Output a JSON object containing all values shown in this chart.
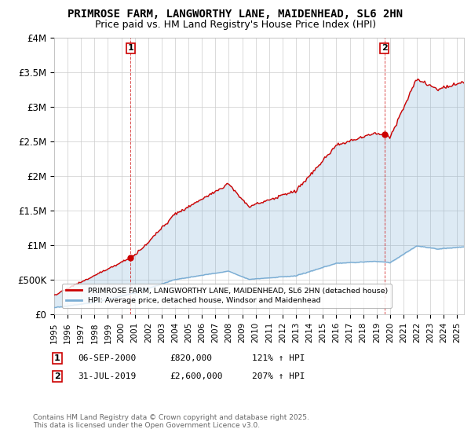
{
  "title": "PRIMROSE FARM, LANGWORTHY LANE, MAIDENHEAD, SL6 2HN",
  "subtitle": "Price paid vs. HM Land Registry's House Price Index (HPI)",
  "ylim": [
    0,
    4000000
  ],
  "yticks": [
    0,
    500000,
    1000000,
    1500000,
    2000000,
    2500000,
    3000000,
    3500000,
    4000000
  ],
  "ytick_labels": [
    "£0",
    "£500K",
    "£1M",
    "£1.5M",
    "£2M",
    "£2.5M",
    "£3M",
    "£3.5M",
    "£4M"
  ],
  "xlim_start": 1995.0,
  "xlim_end": 2025.5,
  "marker1_x": 2000.68,
  "marker1_y": 820000,
  "marker2_x": 2019.58,
  "marker2_y": 2600000,
  "legend_line1": "PRIMROSE FARM, LANGWORTHY LANE, MAIDENHEAD, SL6 2HN (detached house)",
  "legend_line2": "HPI: Average price, detached house, Windsor and Maidenhead",
  "footer": "Contains HM Land Registry data © Crown copyright and database right 2025.\nThis data is licensed under the Open Government Licence v3.0.",
  "red_color": "#cc0000",
  "blue_color": "#7aadd4",
  "fill_color": "#ddeeff",
  "marker_box_color": "#cc0000",
  "background_color": "#ffffff",
  "grid_color": "#cccccc",
  "title_fontsize": 10,
  "subtitle_fontsize": 9
}
